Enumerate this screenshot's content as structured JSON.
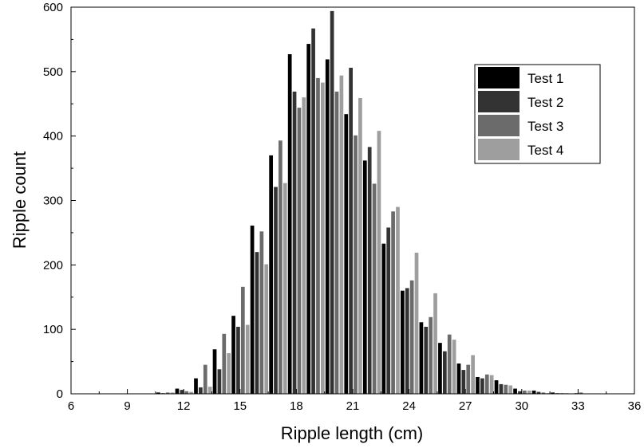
{
  "chart_data": {
    "type": "bar",
    "xlabel": "Ripple length  (cm)",
    "ylabel": "Ripple count",
    "xlim": [
      6,
      36
    ],
    "ylim": [
      0,
      600
    ],
    "xticks": [
      6,
      9,
      12,
      15,
      18,
      21,
      24,
      27,
      30,
      33,
      36
    ],
    "yticks": [
      0,
      100,
      200,
      300,
      400,
      500,
      600
    ],
    "grid": false,
    "legend_position": "top-right",
    "bin_width": 1,
    "bin_centers": [
      11,
      12,
      13,
      14,
      15,
      16,
      17,
      18,
      19,
      20,
      21,
      22,
      23,
      24,
      25,
      26,
      27,
      28,
      29,
      30,
      31,
      32,
      33
    ],
    "series": [
      {
        "name": "Test 1",
        "color": "#000000",
        "values": [
          2,
          8,
          24,
          69,
          121,
          261,
          370,
          527,
          543,
          519,
          434,
          362,
          233,
          160,
          111,
          79,
          47,
          26,
          21,
          8,
          5,
          2,
          0
        ]
      },
      {
        "name": "Test 2",
        "color": "#333333",
        "values": [
          1,
          6,
          10,
          38,
          104,
          220,
          321,
          469,
          567,
          594,
          506,
          383,
          258,
          164,
          104,
          66,
          37,
          24,
          15,
          4,
          3,
          1,
          1
        ]
      },
      {
        "name": "Test 3",
        "color": "#6b6b6b",
        "values": [
          2,
          4,
          45,
          93,
          166,
          252,
          393,
          444,
          490,
          469,
          401,
          326,
          283,
          176,
          119,
          92,
          45,
          30,
          14,
          5,
          2,
          1,
          2
        ]
      },
      {
        "name": "Test 4",
        "color": "#9e9e9e",
        "values": [
          2,
          3,
          11,
          63,
          107,
          201,
          327,
          460,
          483,
          494,
          459,
          408,
          290,
          219,
          156,
          84,
          60,
          29,
          13,
          5,
          1,
          1,
          0
        ]
      }
    ]
  }
}
